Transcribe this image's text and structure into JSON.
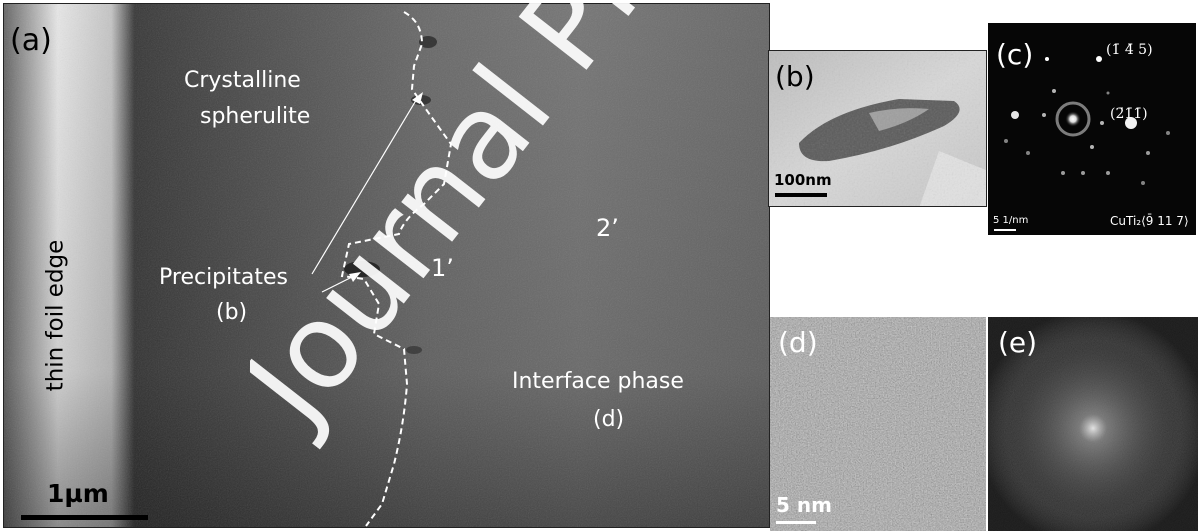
{
  "panels": {
    "a": {
      "label": "(a)",
      "edge_label": "thin foil edge",
      "spherulite_label_1": "Crystalline",
      "spherulite_label_2": "spherulite",
      "precipitates_label": "Precipitates",
      "precipitates_ref": "(b)",
      "interface_label": "Interface phase",
      "interface_ref": "(d)",
      "point_1": "1’",
      "point_2": "2’",
      "scale_bar": "1µm"
    },
    "b": {
      "label": "(b)",
      "scale_bar": "100nm"
    },
    "c": {
      "label": "(c)",
      "spot_1": "(1̄ 4̄ 5)",
      "spot_2": "(2̄1̄1̄)",
      "scale_bar": "5 1/nm",
      "zone_axis": "CuTi₂⟨9̄ 11 7⟩"
    },
    "d": {
      "label": "(d)",
      "scale_bar": "5 nm"
    },
    "e": {
      "label": "(e)"
    }
  },
  "watermark": "Journal Pre-proof"
}
